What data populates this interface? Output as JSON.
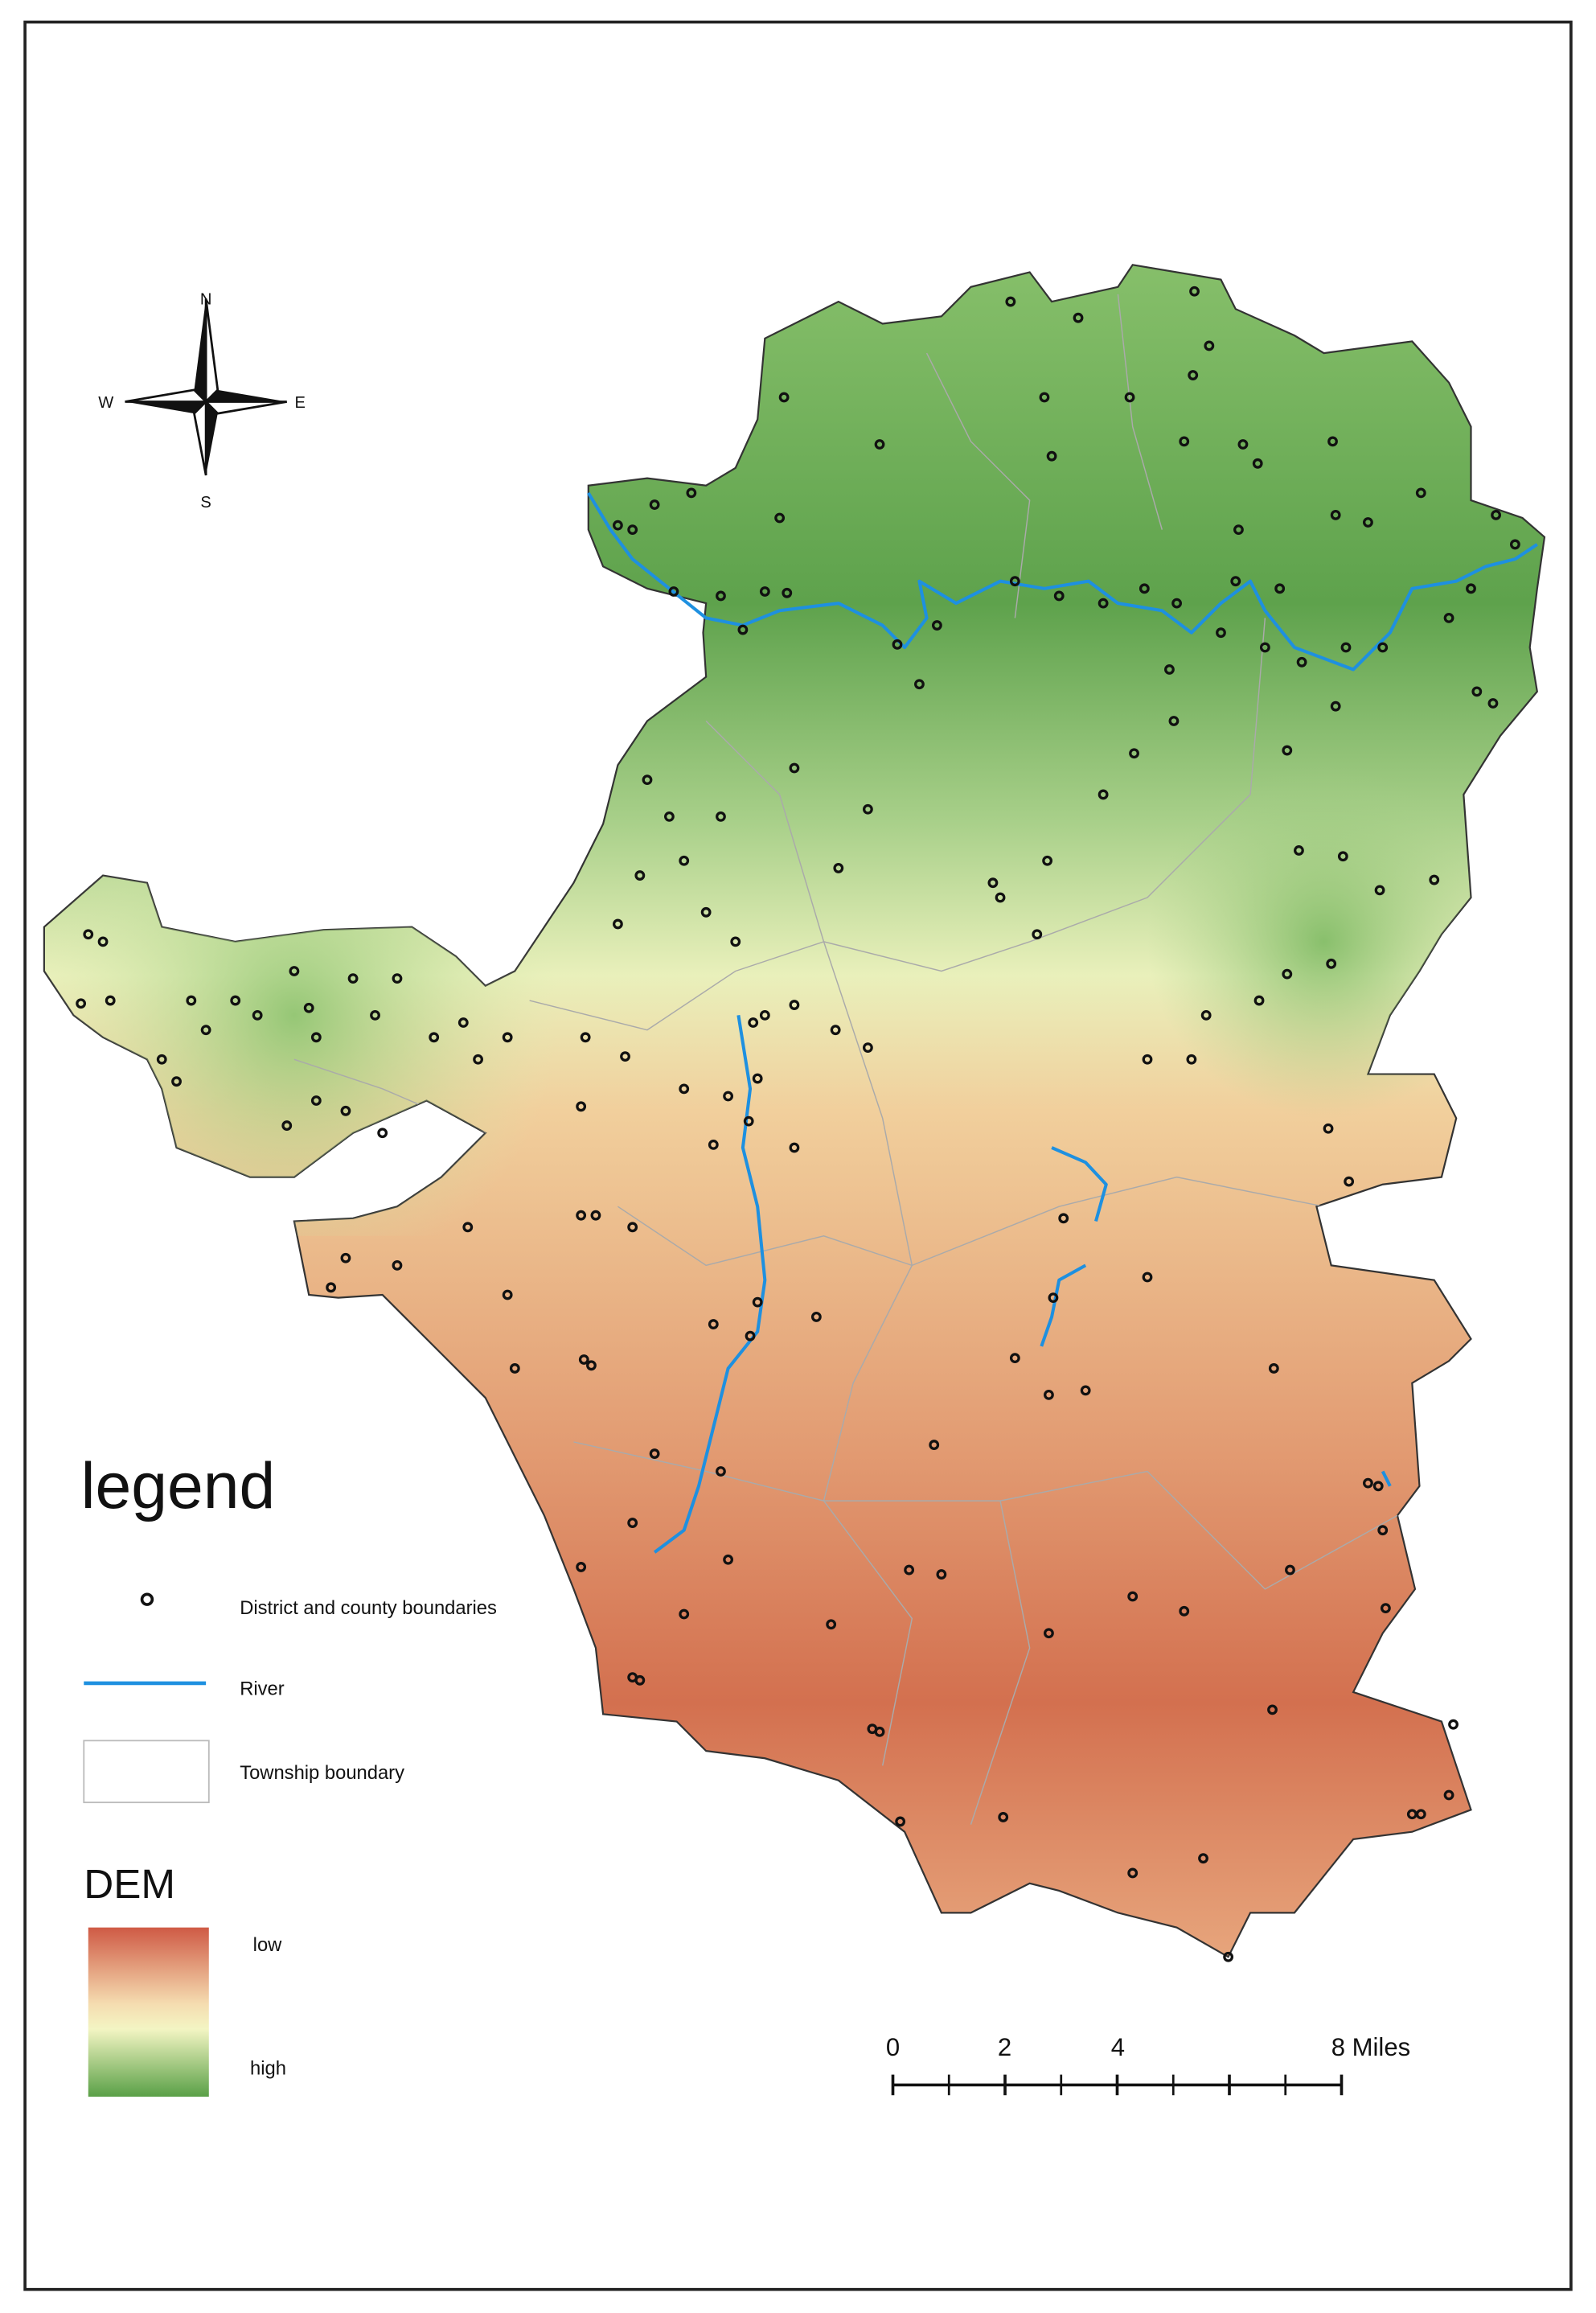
{
  "compass": {
    "north": "N",
    "south": "S",
    "west": "W",
    "east": "E"
  },
  "legend": {
    "title": "legend",
    "items": [
      {
        "label": "District and county boundaries"
      },
      {
        "label": "River"
      },
      {
        "label": "Township boundary"
      }
    ]
  },
  "dem": {
    "title": "DEM",
    "low": "low",
    "high": "high"
  },
  "scale_bar": {
    "labels": [
      "0",
      "2",
      "4",
      "8 Miles"
    ]
  }
}
